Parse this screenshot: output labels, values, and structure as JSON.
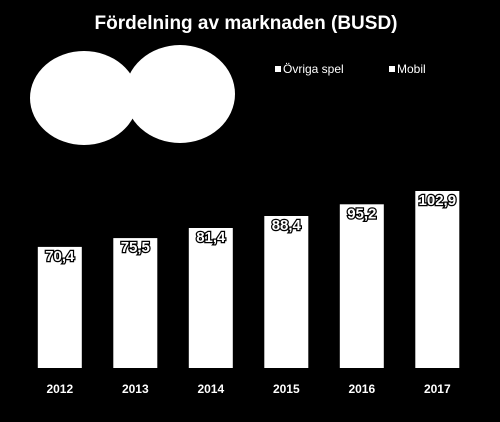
{
  "chart_data": {
    "type": "bar",
    "title": "Fördelning av marknaden (BUSD)",
    "categories": [
      "2012",
      "2013",
      "2014",
      "2015",
      "2016",
      "2017"
    ],
    "series": [
      {
        "name": "Övriga spel",
        "values": [
          70.4,
          75.5,
          81.4,
          88.4,
          95.2,
          102.9
        ]
      }
    ],
    "value_labels": [
      "70,4",
      "75,5",
      "81,4",
      "88,4",
      "95,2",
      "102,9"
    ],
    "legend": [
      {
        "label": "Övriga spel",
        "color": "#ffffff"
      },
      {
        "label": "Mobil",
        "color": "#ffffff"
      }
    ],
    "legend_position": "top-right",
    "xlabel": "",
    "ylabel": "",
    "ylim": [
      0,
      200
    ],
    "grid": false,
    "colors": {
      "background": "#000000",
      "bar": "#ffffff",
      "text": "#ffffff"
    }
  }
}
